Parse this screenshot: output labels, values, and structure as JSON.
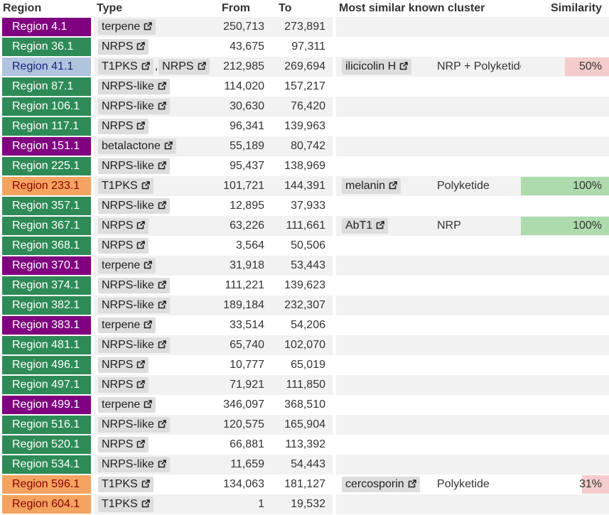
{
  "headers": {
    "region": "Region",
    "type": "Type",
    "from": "From",
    "to": "To",
    "cluster": "Most similar known cluster",
    "similarity": "Similarity"
  },
  "icons": {
    "external_link": "external-link-icon"
  },
  "colors": {
    "terpene": "#800080",
    "nrps": "#2e8b57",
    "t1pks_nrps": "#b0c4de",
    "t1pks": "#f4a460",
    "betalactone": "#800080",
    "sim_high": "#addbad",
    "sim_mid": "#f4cccc"
  },
  "rows": [
    {
      "region": "Region 4.1",
      "color": "#800080",
      "text_color": "#ffffff",
      "types": [
        "terpene"
      ],
      "from": "250,713",
      "to": "273,891",
      "cluster": "",
      "cluster_type": "",
      "similarity": "",
      "similarity_value": 0,
      "sim_color": ""
    },
    {
      "region": "Region 36.1",
      "color": "#2e8b57",
      "text_color": "#ffffff",
      "types": [
        "NRPS"
      ],
      "from": "43,675",
      "to": "97,311",
      "cluster": "",
      "cluster_type": "",
      "similarity": "",
      "similarity_value": 0,
      "sim_color": ""
    },
    {
      "region": "Region 41.1",
      "color": "#b0c4de",
      "text_color": "#1a237e",
      "types": [
        "T1PKS",
        "NRPS"
      ],
      "from": "212,985",
      "to": "269,694",
      "cluster": "ilicicolin H",
      "cluster_type": "NRP + Polyketide",
      "similarity": "50%",
      "similarity_value": 0.5,
      "sim_color": "#f4cccc"
    },
    {
      "region": "Region 87.1",
      "color": "#2e8b57",
      "text_color": "#ffffff",
      "types": [
        "NRPS-like"
      ],
      "from": "114,020",
      "to": "157,217",
      "cluster": "",
      "cluster_type": "",
      "similarity": "",
      "similarity_value": 0,
      "sim_color": ""
    },
    {
      "region": "Region 106.1",
      "color": "#2e8b57",
      "text_color": "#ffffff",
      "types": [
        "NRPS-like"
      ],
      "from": "30,630",
      "to": "76,420",
      "cluster": "",
      "cluster_type": "",
      "similarity": "",
      "similarity_value": 0,
      "sim_color": ""
    },
    {
      "region": "Region 117.1",
      "color": "#2e8b57",
      "text_color": "#ffffff",
      "types": [
        "NRPS"
      ],
      "from": "96,341",
      "to": "139,963",
      "cluster": "",
      "cluster_type": "",
      "similarity": "",
      "similarity_value": 0,
      "sim_color": ""
    },
    {
      "region": "Region 151.1",
      "color": "#800080",
      "text_color": "#ffffff",
      "types": [
        "betalactone"
      ],
      "from": "55,189",
      "to": "80,742",
      "cluster": "",
      "cluster_type": "",
      "similarity": "",
      "similarity_value": 0,
      "sim_color": ""
    },
    {
      "region": "Region 225.1",
      "color": "#2e8b57",
      "text_color": "#ffffff",
      "types": [
        "NRPS-like"
      ],
      "from": "95,437",
      "to": "138,969",
      "cluster": "",
      "cluster_type": "",
      "similarity": "",
      "similarity_value": 0,
      "sim_color": ""
    },
    {
      "region": "Region 233.1",
      "color": "#f4a460",
      "text_color": "#8b0000",
      "types": [
        "T1PKS"
      ],
      "from": "101,721",
      "to": "144,391",
      "cluster": "melanin",
      "cluster_type": "Polyketide",
      "similarity": "100%",
      "similarity_value": 1.0,
      "sim_color": "#addbad"
    },
    {
      "region": "Region 357.1",
      "color": "#2e8b57",
      "text_color": "#ffffff",
      "types": [
        "NRPS-like"
      ],
      "from": "12,895",
      "to": "37,933",
      "cluster": "",
      "cluster_type": "",
      "similarity": "",
      "similarity_value": 0,
      "sim_color": ""
    },
    {
      "region": "Region 367.1",
      "color": "#2e8b57",
      "text_color": "#ffffff",
      "types": [
        "NRPS"
      ],
      "from": "63,226",
      "to": "111,661",
      "cluster": "AbT1",
      "cluster_type": "NRP",
      "similarity": "100%",
      "similarity_value": 1.0,
      "sim_color": "#addbad"
    },
    {
      "region": "Region 368.1",
      "color": "#2e8b57",
      "text_color": "#ffffff",
      "types": [
        "NRPS"
      ],
      "from": "3,564",
      "to": "50,506",
      "cluster": "",
      "cluster_type": "",
      "similarity": "",
      "similarity_value": 0,
      "sim_color": ""
    },
    {
      "region": "Region 370.1",
      "color": "#800080",
      "text_color": "#ffffff",
      "types": [
        "terpene"
      ],
      "from": "31,918",
      "to": "53,443",
      "cluster": "",
      "cluster_type": "",
      "similarity": "",
      "similarity_value": 0,
      "sim_color": ""
    },
    {
      "region": "Region 374.1",
      "color": "#2e8b57",
      "text_color": "#ffffff",
      "types": [
        "NRPS-like"
      ],
      "from": "111,221",
      "to": "139,623",
      "cluster": "",
      "cluster_type": "",
      "similarity": "",
      "similarity_value": 0,
      "sim_color": ""
    },
    {
      "region": "Region 382.1",
      "color": "#2e8b57",
      "text_color": "#ffffff",
      "types": [
        "NRPS-like"
      ],
      "from": "189,184",
      "to": "232,307",
      "cluster": "",
      "cluster_type": "",
      "similarity": "",
      "similarity_value": 0,
      "sim_color": ""
    },
    {
      "region": "Region 383.1",
      "color": "#800080",
      "text_color": "#ffffff",
      "types": [
        "terpene"
      ],
      "from": "33,514",
      "to": "54,206",
      "cluster": "",
      "cluster_type": "",
      "similarity": "",
      "similarity_value": 0,
      "sim_color": ""
    },
    {
      "region": "Region 481.1",
      "color": "#2e8b57",
      "text_color": "#ffffff",
      "types": [
        "NRPS-like"
      ],
      "from": "65,740",
      "to": "102,070",
      "cluster": "",
      "cluster_type": "",
      "similarity": "",
      "similarity_value": 0,
      "sim_color": ""
    },
    {
      "region": "Region 496.1",
      "color": "#2e8b57",
      "text_color": "#ffffff",
      "types": [
        "NRPS"
      ],
      "from": "10,777",
      "to": "65,019",
      "cluster": "",
      "cluster_type": "",
      "similarity": "",
      "similarity_value": 0,
      "sim_color": ""
    },
    {
      "region": "Region 497.1",
      "color": "#2e8b57",
      "text_color": "#ffffff",
      "types": [
        "NRPS"
      ],
      "from": "71,921",
      "to": "111,850",
      "cluster": "",
      "cluster_type": "",
      "similarity": "",
      "similarity_value": 0,
      "sim_color": ""
    },
    {
      "region": "Region 499.1",
      "color": "#800080",
      "text_color": "#ffffff",
      "types": [
        "terpene"
      ],
      "from": "346,097",
      "to": "368,510",
      "cluster": "",
      "cluster_type": "",
      "similarity": "",
      "similarity_value": 0,
      "sim_color": ""
    },
    {
      "region": "Region 516.1",
      "color": "#2e8b57",
      "text_color": "#ffffff",
      "types": [
        "NRPS-like"
      ],
      "from": "120,575",
      "to": "165,904",
      "cluster": "",
      "cluster_type": "",
      "similarity": "",
      "similarity_value": 0,
      "sim_color": ""
    },
    {
      "region": "Region 520.1",
      "color": "#2e8b57",
      "text_color": "#ffffff",
      "types": [
        "NRPS"
      ],
      "from": "66,881",
      "to": "113,392",
      "cluster": "",
      "cluster_type": "",
      "similarity": "",
      "similarity_value": 0,
      "sim_color": ""
    },
    {
      "region": "Region 534.1",
      "color": "#2e8b57",
      "text_color": "#ffffff",
      "types": [
        "NRPS-like"
      ],
      "from": "11,659",
      "to": "54,443",
      "cluster": "",
      "cluster_type": "",
      "similarity": "",
      "similarity_value": 0,
      "sim_color": ""
    },
    {
      "region": "Region 596.1",
      "color": "#f4a460",
      "text_color": "#8b0000",
      "types": [
        "T1PKS"
      ],
      "from": "134,063",
      "to": "181,127",
      "cluster": "cercosporin",
      "cluster_type": "Polyketide",
      "similarity": "31%",
      "similarity_value": 0.31,
      "sim_color": "#f4cccc"
    },
    {
      "region": "Region 604.1",
      "color": "#f4a460",
      "text_color": "#8b0000",
      "types": [
        "T1PKS"
      ],
      "from": "1",
      "to": "19,532",
      "cluster": "",
      "cluster_type": "",
      "similarity": "",
      "similarity_value": 0,
      "sim_color": ""
    }
  ]
}
